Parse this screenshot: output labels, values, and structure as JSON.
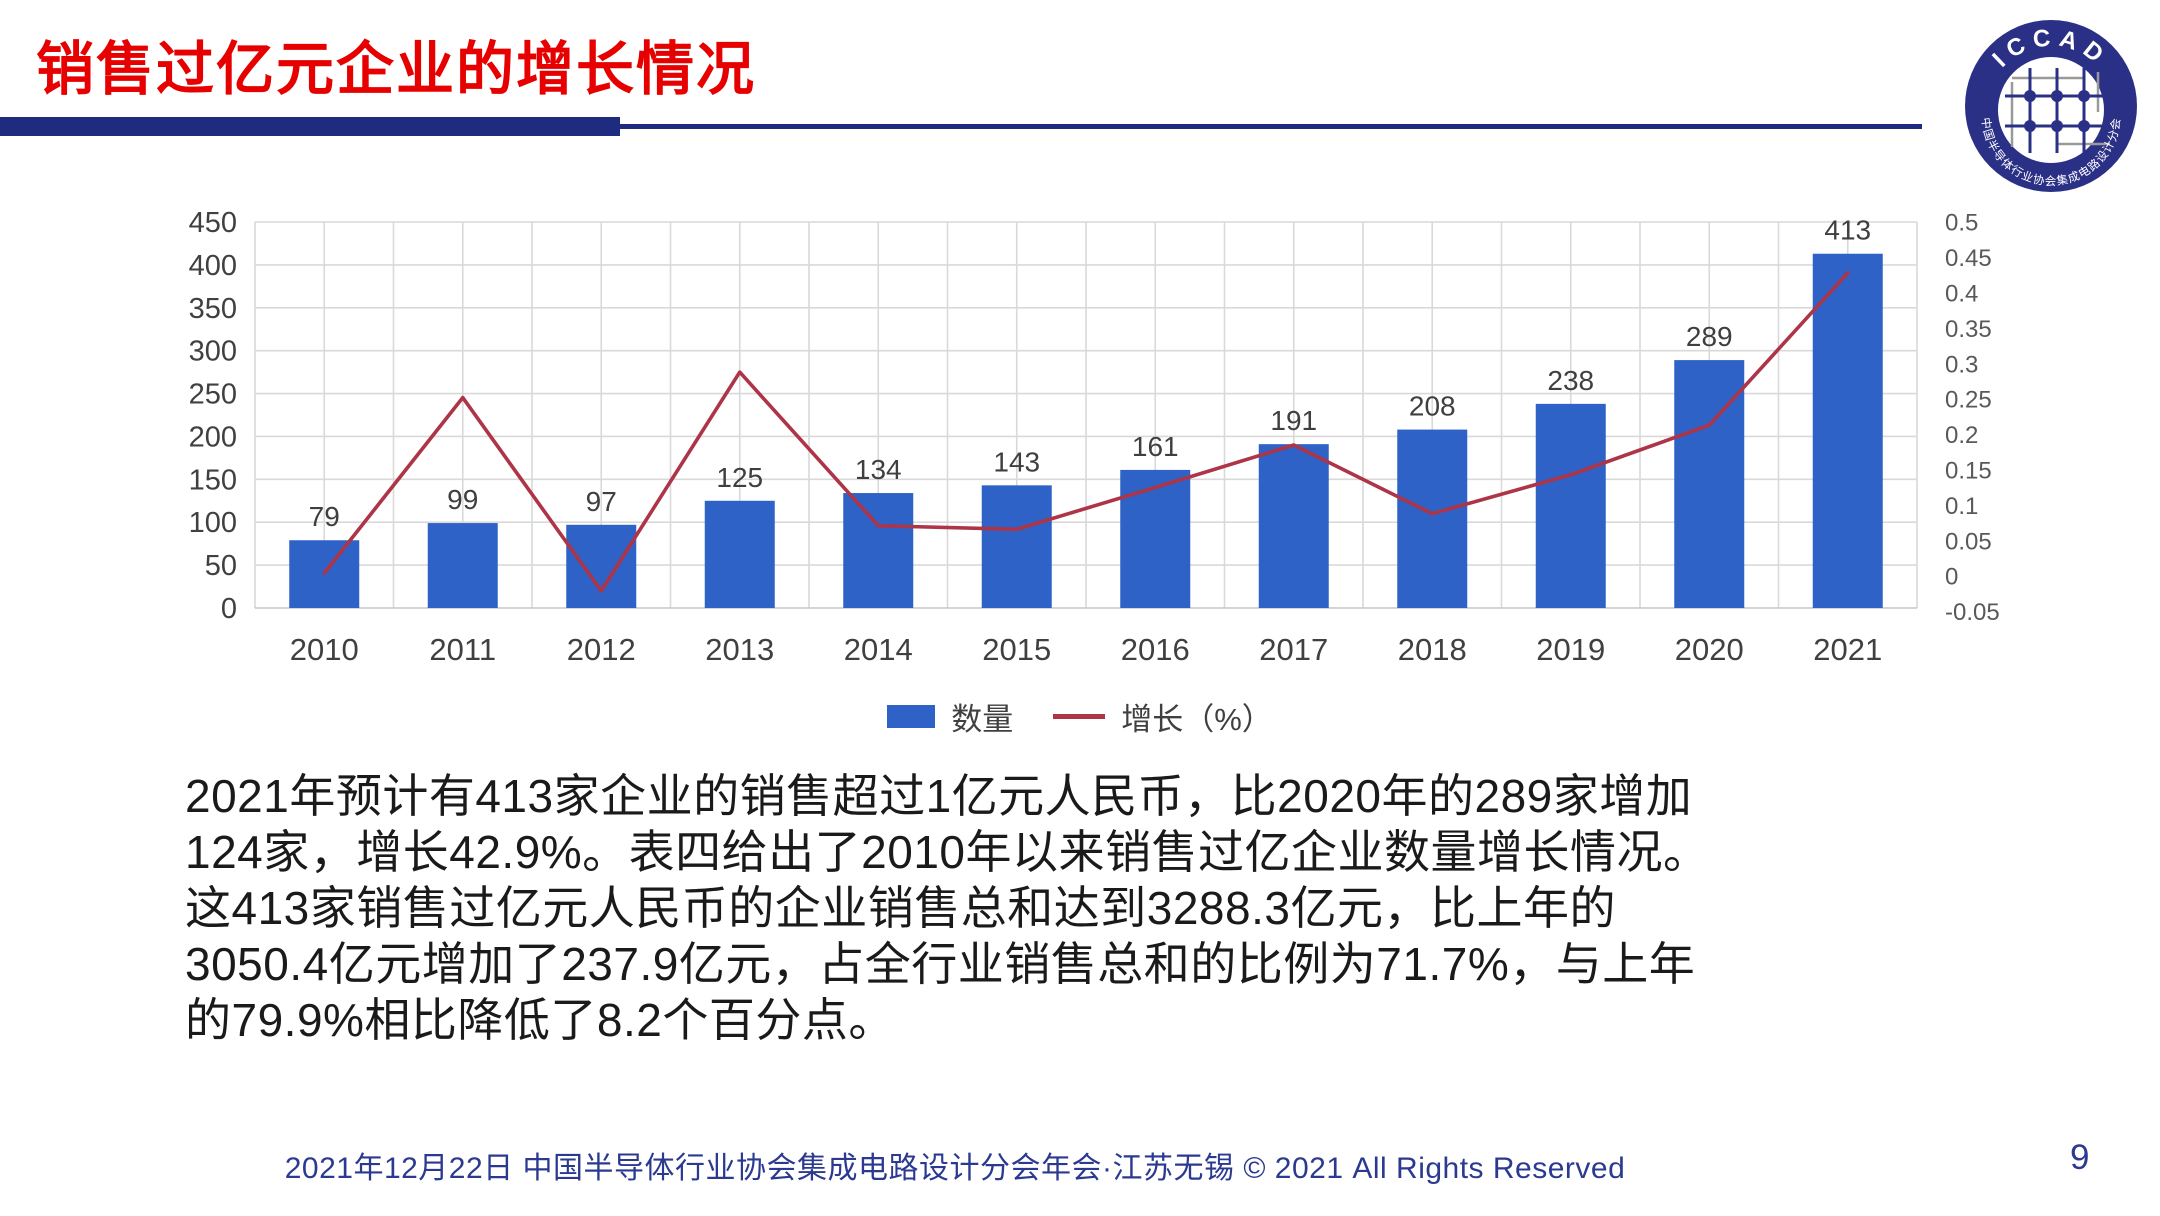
{
  "slide": {
    "title": "销售过亿元企业的增长情况",
    "footer": "2021年12月22日 中国半导体行业协会集成电路设计分会年会·江苏无锡 © 2021 All Rights Reserved",
    "page_number": "9",
    "accent_red": "#e60000",
    "accent_navy": "#1f2b7e"
  },
  "logo": {
    "top_text": "ICCAD",
    "bottom_text": "中国半导体行业协会集成电路设计分会"
  },
  "legend": {
    "bar_label": "数量",
    "line_label": "增长（%）"
  },
  "body": {
    "lines": [
      "2021年预计有413家企业的销售超过1亿元人民币，比2020年的289家增加",
      "124家，增长42.9%。表四给出了2010年以来销售过亿企业数量增长情况。",
      "这413家销售过亿元人民币的企业销售总和达到3288.3亿元，比上年的",
      "3050.4亿元增加了237.9亿元，占全行业销售总和的比例为71.7%，与上年",
      "的79.9%相比降低了8.2个百分点。"
    ]
  },
  "chart_data": {
    "type": "bar",
    "subtype": "combo-bar-line",
    "categories": [
      "2010",
      "2011",
      "2012",
      "2013",
      "2014",
      "2015",
      "2016",
      "2017",
      "2018",
      "2019",
      "2020",
      "2021"
    ],
    "series": [
      {
        "name": "数量",
        "type": "bar",
        "axis": "left",
        "color": "#2e62c6",
        "values": [
          79,
          99,
          97,
          125,
          134,
          143,
          161,
          191,
          208,
          238,
          289,
          413
        ]
      },
      {
        "name": "增长（%）",
        "type": "line",
        "axis": "right",
        "color": "#ae3448",
        "values": [
          0.005,
          0.253,
          -0.02,
          0.289,
          0.072,
          0.067,
          0.126,
          0.186,
          0.089,
          0.144,
          0.214,
          0.429
        ]
      }
    ],
    "left_axis": {
      "min": 0,
      "max": 450,
      "step": 50
    },
    "right_axis": {
      "min": -0.05,
      "max": 0.5,
      "step": 0.05
    },
    "grid": true,
    "legend_position": "bottom",
    "data_labels": true
  }
}
